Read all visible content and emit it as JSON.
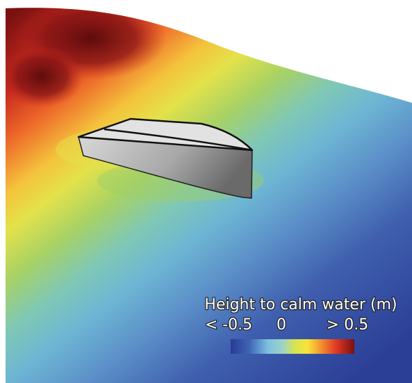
{
  "legend": {
    "title": "Height to calm water (m)",
    "labels": [
      "< -0.5",
      "0",
      "> 0.5"
    ]
  }
}
